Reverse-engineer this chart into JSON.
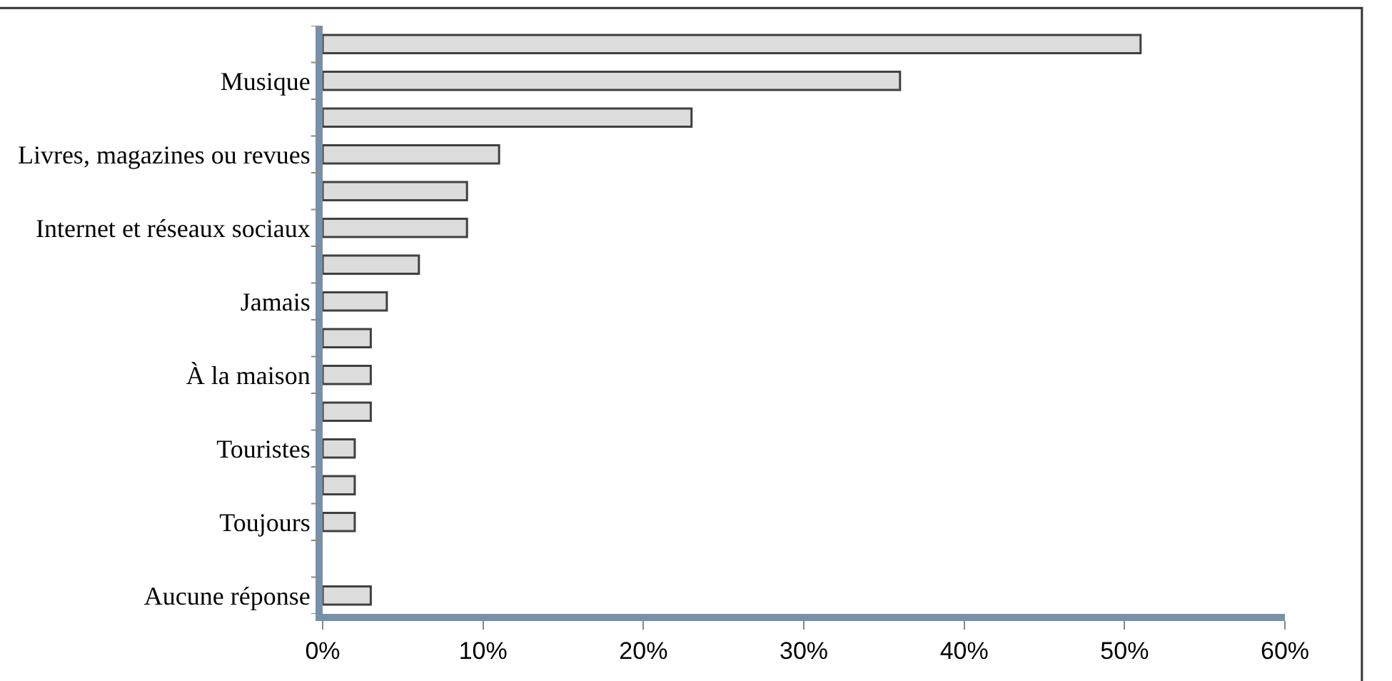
{
  "chart_data": {
    "type": "bar",
    "orientation": "horizontal",
    "categories": [
      null,
      "Musique",
      null,
      "Livres, magazines ou revues",
      null,
      "Internet et réseaux sociaux",
      null,
      "Jamais",
      null,
      "À la maison",
      null,
      "Touristes",
      null,
      "Toujours",
      null,
      "Aucune réponse"
    ],
    "values": [
      51,
      36,
      23,
      11,
      9,
      9,
      6,
      4,
      3,
      3,
      3,
      2,
      2,
      2,
      0,
      3
    ],
    "color": "#dcdcdc",
    "xlim": [
      0,
      60
    ],
    "xticks": [
      {
        "value": 0,
        "label": "0%"
      },
      {
        "value": 10,
        "label": "10%"
      },
      {
        "value": 20,
        "label": "20%"
      },
      {
        "value": 30,
        "label": "30%"
      },
      {
        "value": 40,
        "label": "40%"
      },
      {
        "value": 50,
        "label": "50%"
      },
      {
        "value": 60,
        "label": "60%"
      }
    ],
    "legend": false
  }
}
